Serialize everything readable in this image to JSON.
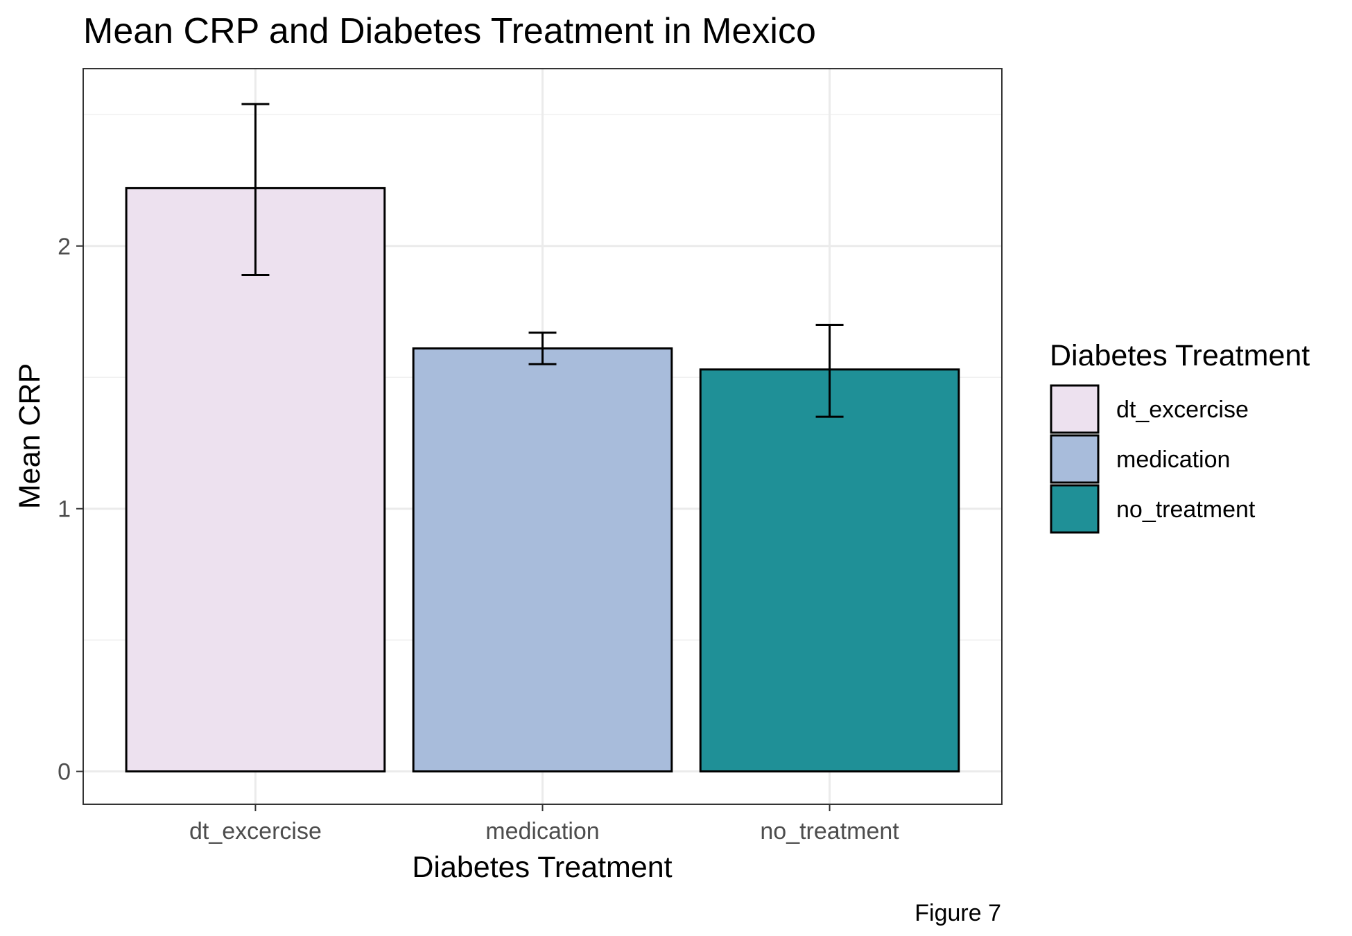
{
  "chart_data": {
    "type": "bar",
    "title": "Mean CRP and Diabetes Treatment in Mexico",
    "xlabel": "Diabetes Treatment",
    "ylabel": "Mean CRP",
    "caption": "Figure 7",
    "categories": [
      "dt_excercise",
      "medication",
      "no_treatment"
    ],
    "values": [
      2.22,
      1.61,
      1.53
    ],
    "error_bars": [
      {
        "low": 1.89,
        "high": 2.54
      },
      {
        "low": 1.55,
        "high": 1.67
      },
      {
        "low": 1.35,
        "high": 1.7
      }
    ],
    "colors": [
      "#ede1ef",
      "#a8bcdb",
      "#1f9097"
    ],
    "ylim": [
      -0.125,
      2.675
    ],
    "yticks": [
      0,
      1,
      2
    ],
    "grid": true,
    "legend": {
      "title": "Diabetes Treatment",
      "position": "right",
      "entries": [
        "dt_excercise",
        "medication",
        "no_treatment"
      ]
    }
  }
}
